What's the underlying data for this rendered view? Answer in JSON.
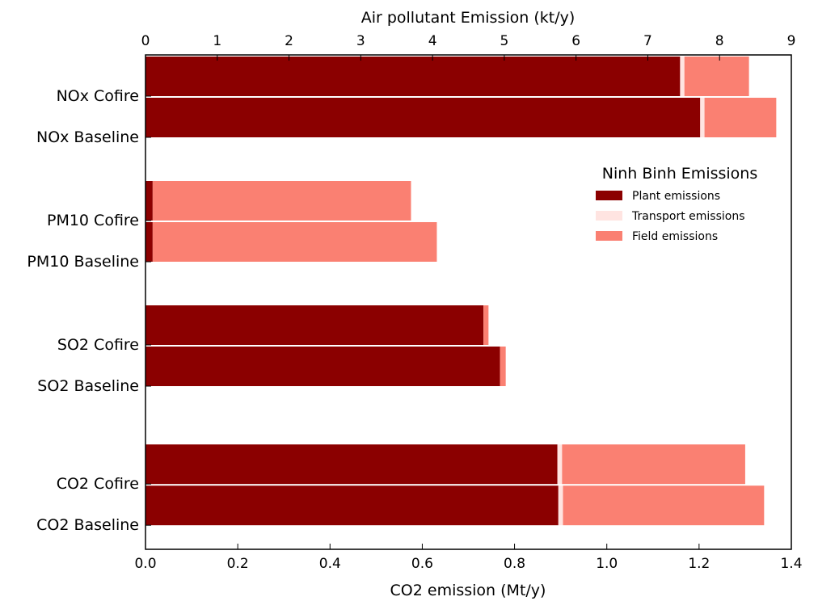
{
  "chart_data": {
    "type": "bar",
    "orientation": "horizontal",
    "stacked": true,
    "title": "",
    "top_axis": {
      "label": "Air pollutant Emission (kt/y)",
      "range": [
        0,
        9
      ],
      "ticks": [
        "0",
        "1",
        "2",
        "3",
        "4",
        "5",
        "6",
        "7",
        "8",
        "9"
      ]
    },
    "bottom_axis": {
      "label": "CO2 emission (Mt/y)",
      "range": [
        0,
        1.4
      ],
      "ticks": [
        "0.0",
        "0.2",
        "0.4",
        "0.6",
        "0.8",
        "1.0",
        "1.2",
        "1.4"
      ]
    },
    "grid": false,
    "legend": {
      "title": "Ninh Binh Emissions",
      "placement": "right"
    },
    "series": [
      {
        "name": "Plant emissions",
        "color": "#8b0000"
      },
      {
        "name": "Transport emissions",
        "color": "#ffe4e1"
      },
      {
        "name": "Field emissions",
        "color": "#fa8072"
      }
    ],
    "categories": [
      {
        "label": "NOx Cofire",
        "axis": "top",
        "values": [
          7.45,
          0.06,
          0.9
        ]
      },
      {
        "label": "NOx Baseline",
        "axis": "top",
        "values": [
          7.73,
          0.06,
          1.0
        ]
      },
      {
        "label": "PM10 Cofire",
        "axis": "top",
        "values": [
          0.1,
          0.0,
          3.6
        ]
      },
      {
        "label": "PM10 Baseline",
        "axis": "top",
        "values": [
          0.1,
          0.0,
          3.96
        ]
      },
      {
        "label": "SO2 Cofire",
        "axis": "top",
        "values": [
          4.71,
          0.0,
          0.07
        ]
      },
      {
        "label": "SO2 Baseline",
        "axis": "top",
        "values": [
          4.94,
          0.0,
          0.08
        ]
      },
      {
        "label": "CO2 Cofire",
        "axis": "bottom",
        "values": [
          0.893,
          0.01,
          0.397
        ]
      },
      {
        "label": "CO2 Baseline",
        "axis": "bottom",
        "values": [
          0.895,
          0.01,
          0.436
        ]
      }
    ]
  }
}
